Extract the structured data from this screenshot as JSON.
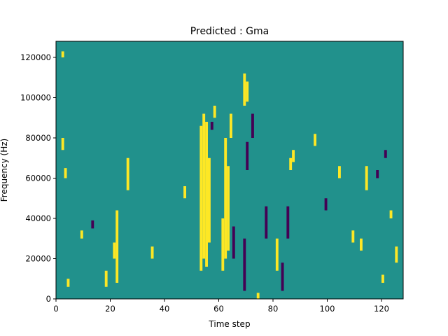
{
  "chart_data": {
    "type": "heatmap",
    "title": "Predicted : Gma",
    "xlabel": "Time step",
    "ylabel": "Frequency (Hz)",
    "xlim": [
      0,
      128
    ],
    "ylim": [
      0,
      128000
    ],
    "x_ticks": [
      0,
      20,
      40,
      60,
      80,
      100,
      120
    ],
    "y_ticks": [
      0,
      20000,
      40000,
      60000,
      80000,
      100000,
      120000
    ],
    "x_tick_labels": [
      "0",
      "20",
      "40",
      "60",
      "80",
      "100",
      "120"
    ],
    "y_tick_labels": [
      "0",
      "20000",
      "40000",
      "60000",
      "80000",
      "100000",
      "120000"
    ],
    "grid": false,
    "colormap": "viridis",
    "value_levels": {
      "low": -1,
      "mid": 0,
      "high": 1
    },
    "colors": {
      "low": "#440154",
      "mid": "#21918c",
      "high": "#fde725"
    },
    "background_value": 0,
    "nonzero_cells": [
      {
        "x": 4,
        "y_start": 6,
        "y_end": 10,
        "value": 1
      },
      {
        "x": 3,
        "y_start": 60,
        "y_end": 65,
        "value": 1
      },
      {
        "x": 2,
        "y_start": 74,
        "y_end": 80,
        "value": 1
      },
      {
        "x": 2,
        "y_start": 120,
        "y_end": 123,
        "value": 1
      },
      {
        "x": 9,
        "y_start": 30,
        "y_end": 34,
        "value": 1
      },
      {
        "x": 13,
        "y_start": 35,
        "y_end": 39,
        "value": -1
      },
      {
        "x": 18,
        "y_start": 6,
        "y_end": 14,
        "value": 1
      },
      {
        "x": 22,
        "y_start": 8,
        "y_end": 44,
        "value": 1
      },
      {
        "x": 21,
        "y_start": 20,
        "y_end": 28,
        "value": 1
      },
      {
        "x": 26,
        "y_start": 54,
        "y_end": 70,
        "value": 1
      },
      {
        "x": 35,
        "y_start": 20,
        "y_end": 26,
        "value": 1
      },
      {
        "x": 47,
        "y_start": 50,
        "y_end": 56,
        "value": 1
      },
      {
        "x": 53,
        "y_start": 14,
        "y_end": 86,
        "value": 1
      },
      {
        "x": 54,
        "y_start": 20,
        "y_end": 92,
        "value": 1
      },
      {
        "x": 55,
        "y_start": 16,
        "y_end": 88,
        "value": 1
      },
      {
        "x": 56,
        "y_start": 28,
        "y_end": 70,
        "value": 1
      },
      {
        "x": 58,
        "y_start": 90,
        "y_end": 96,
        "value": 1
      },
      {
        "x": 61,
        "y_start": 14,
        "y_end": 40,
        "value": 1
      },
      {
        "x": 62,
        "y_start": 20,
        "y_end": 80,
        "value": 1
      },
      {
        "x": 63,
        "y_start": 24,
        "y_end": 66,
        "value": 1
      },
      {
        "x": 64,
        "y_start": 80,
        "y_end": 92,
        "value": 1
      },
      {
        "x": 69,
        "y_start": 96,
        "y_end": 112,
        "value": 1
      },
      {
        "x": 70,
        "y_start": 98,
        "y_end": 108,
        "value": 1
      },
      {
        "x": 57,
        "y_start": 84,
        "y_end": 88,
        "value": -1
      },
      {
        "x": 65,
        "y_start": 20,
        "y_end": 36,
        "value": -1
      },
      {
        "x": 69,
        "y_start": 4,
        "y_end": 30,
        "value": -1
      },
      {
        "x": 70,
        "y_start": 64,
        "y_end": 78,
        "value": -1
      },
      {
        "x": 72,
        "y_start": 80,
        "y_end": 92,
        "value": -1
      },
      {
        "x": 74,
        "y_start": 0,
        "y_end": 3,
        "value": 1
      },
      {
        "x": 77,
        "y_start": 30,
        "y_end": 46,
        "value": -1
      },
      {
        "x": 81,
        "y_start": 14,
        "y_end": 30,
        "value": 1
      },
      {
        "x": 83,
        "y_start": 4,
        "y_end": 18,
        "value": -1
      },
      {
        "x": 85,
        "y_start": 30,
        "y_end": 46,
        "value": -1
      },
      {
        "x": 86,
        "y_start": 64,
        "y_end": 70,
        "value": 1
      },
      {
        "x": 87,
        "y_start": 68,
        "y_end": 74,
        "value": 1
      },
      {
        "x": 95,
        "y_start": 76,
        "y_end": 82,
        "value": 1
      },
      {
        "x": 99,
        "y_start": 44,
        "y_end": 50,
        "value": -1
      },
      {
        "x": 104,
        "y_start": 60,
        "y_end": 66,
        "value": 1
      },
      {
        "x": 109,
        "y_start": 28,
        "y_end": 34,
        "value": 1
      },
      {
        "x": 112,
        "y_start": 24,
        "y_end": 30,
        "value": 1
      },
      {
        "x": 114,
        "y_start": 54,
        "y_end": 66,
        "value": 1
      },
      {
        "x": 118,
        "y_start": 60,
        "y_end": 64,
        "value": -1
      },
      {
        "x": 120,
        "y_start": 8,
        "y_end": 12,
        "value": 1
      },
      {
        "x": 121,
        "y_start": 70,
        "y_end": 74,
        "value": -1
      },
      {
        "x": 123,
        "y_start": 40,
        "y_end": 44,
        "value": 1
      },
      {
        "x": 125,
        "y_start": 18,
        "y_end": 26,
        "value": 1
      }
    ]
  }
}
